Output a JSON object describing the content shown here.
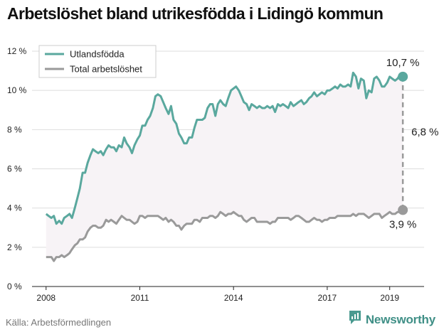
{
  "title": "Arbetslöshet bland utrikesfödda i Lidingö kommun",
  "source": "Källa: Arbetsförmedlingen",
  "brand": {
    "name": "Newsworthy",
    "icon": "newsworthy-logo-icon"
  },
  "colors": {
    "foreign": "#5aa89e",
    "total": "#9a9a9a",
    "gap_fill": "#f7f3f6",
    "grid": "#dddddd"
  },
  "chart_data": {
    "type": "line",
    "title": "Arbetslöshet bland utrikesfödda i Lidingö kommun",
    "xlabel": "",
    "ylabel": "",
    "xlim": [
      2007.55,
      2020.1
    ],
    "ylim": [
      0,
      12
    ],
    "yticks": [
      0,
      2,
      4,
      6,
      8,
      10,
      12
    ],
    "ytick_labels": [
      "0 %",
      "2 %",
      "4 %",
      "6 %",
      "8 %",
      "10 %",
      "12 %"
    ],
    "xticks": [
      2008,
      2011,
      2014,
      2017,
      2019
    ],
    "xtick_labels": [
      "2008",
      "2011",
      "2014",
      "2017",
      "2019"
    ],
    "grid": true,
    "legend": "top-left",
    "series": [
      {
        "name": "Utlandsfödda",
        "points": [
          [
            2008.0,
            3.7
          ],
          [
            2008.08,
            3.6
          ],
          [
            2008.17,
            3.5
          ],
          [
            2008.25,
            3.6
          ],
          [
            2008.33,
            3.2
          ],
          [
            2008.42,
            3.35
          ],
          [
            2008.5,
            3.2
          ],
          [
            2008.58,
            3.5
          ],
          [
            2008.67,
            3.6
          ],
          [
            2008.75,
            3.7
          ],
          [
            2008.83,
            3.5
          ],
          [
            2008.92,
            4.0
          ],
          [
            2009.0,
            4.5
          ],
          [
            2009.08,
            5.0
          ],
          [
            2009.17,
            5.8
          ],
          [
            2009.25,
            5.8
          ],
          [
            2009.33,
            6.3
          ],
          [
            2009.42,
            6.7
          ],
          [
            2009.5,
            7.0
          ],
          [
            2009.58,
            6.9
          ],
          [
            2009.67,
            6.8
          ],
          [
            2009.75,
            6.9
          ],
          [
            2009.83,
            6.7
          ],
          [
            2009.92,
            7.0
          ],
          [
            2010.0,
            7.2
          ],
          [
            2010.08,
            7.1
          ],
          [
            2010.17,
            7.1
          ],
          [
            2010.25,
            6.9
          ],
          [
            2010.33,
            7.2
          ],
          [
            2010.42,
            7.1
          ],
          [
            2010.5,
            7.6
          ],
          [
            2010.58,
            7.3
          ],
          [
            2010.67,
            7.1
          ],
          [
            2010.75,
            6.8
          ],
          [
            2010.83,
            7.2
          ],
          [
            2010.92,
            7.5
          ],
          [
            2011.0,
            7.7
          ],
          [
            2011.08,
            8.2
          ],
          [
            2011.17,
            8.2
          ],
          [
            2011.25,
            8.5
          ],
          [
            2011.33,
            8.7
          ],
          [
            2011.42,
            9.1
          ],
          [
            2011.5,
            9.7
          ],
          [
            2011.58,
            9.8
          ],
          [
            2011.67,
            9.7
          ],
          [
            2011.75,
            9.4
          ],
          [
            2011.83,
            9.1
          ],
          [
            2011.92,
            8.8
          ],
          [
            2012.0,
            9.2
          ],
          [
            2012.08,
            8.5
          ],
          [
            2012.17,
            8.3
          ],
          [
            2012.25,
            7.8
          ],
          [
            2012.33,
            7.6
          ],
          [
            2012.42,
            7.3
          ],
          [
            2012.5,
            7.3
          ],
          [
            2012.58,
            7.6
          ],
          [
            2012.67,
            7.6
          ],
          [
            2012.75,
            8.1
          ],
          [
            2012.83,
            8.5
          ],
          [
            2012.92,
            8.5
          ],
          [
            2013.0,
            8.5
          ],
          [
            2013.08,
            8.6
          ],
          [
            2013.17,
            9.1
          ],
          [
            2013.25,
            9.3
          ],
          [
            2013.33,
            9.3
          ],
          [
            2013.42,
            8.7
          ],
          [
            2013.5,
            9.3
          ],
          [
            2013.58,
            9.5
          ],
          [
            2013.67,
            9.3
          ],
          [
            2013.75,
            9.2
          ],
          [
            2013.83,
            9.6
          ],
          [
            2013.92,
            10.0
          ],
          [
            2014.0,
            10.1
          ],
          [
            2014.08,
            10.2
          ],
          [
            2014.17,
            10.0
          ],
          [
            2014.25,
            9.7
          ],
          [
            2014.33,
            9.4
          ],
          [
            2014.42,
            9.3
          ],
          [
            2014.5,
            9.0
          ],
          [
            2014.58,
            9.3
          ],
          [
            2014.67,
            9.2
          ],
          [
            2014.75,
            9.1
          ],
          [
            2014.83,
            9.2
          ],
          [
            2014.92,
            9.1
          ],
          [
            2015.0,
            9.1
          ],
          [
            2015.08,
            9.2
          ],
          [
            2015.17,
            9.1
          ],
          [
            2015.25,
            9.2
          ],
          [
            2015.33,
            8.9
          ],
          [
            2015.42,
            9.3
          ],
          [
            2015.5,
            9.2
          ],
          [
            2015.58,
            9.3
          ],
          [
            2015.67,
            9.2
          ],
          [
            2015.75,
            9.1
          ],
          [
            2015.83,
            9.4
          ],
          [
            2015.92,
            9.2
          ],
          [
            2016.0,
            9.3
          ],
          [
            2016.08,
            9.4
          ],
          [
            2016.17,
            9.5
          ],
          [
            2016.25,
            9.3
          ],
          [
            2016.33,
            9.4
          ],
          [
            2016.42,
            9.6
          ],
          [
            2016.5,
            9.7
          ],
          [
            2016.58,
            9.9
          ],
          [
            2016.67,
            9.7
          ],
          [
            2016.75,
            9.8
          ],
          [
            2016.83,
            9.9
          ],
          [
            2016.92,
            9.8
          ],
          [
            2017.0,
            10.0
          ],
          [
            2017.08,
            10.0
          ],
          [
            2017.17,
            10.1
          ],
          [
            2017.25,
            10.2
          ],
          [
            2017.33,
            10.1
          ],
          [
            2017.42,
            10.3
          ],
          [
            2017.5,
            10.2
          ],
          [
            2017.58,
            10.2
          ],
          [
            2017.67,
            10.3
          ],
          [
            2017.75,
            10.2
          ],
          [
            2017.83,
            10.9
          ],
          [
            2017.92,
            10.7
          ],
          [
            2018.0,
            10.1
          ],
          [
            2018.08,
            10.6
          ],
          [
            2018.17,
            10.5
          ],
          [
            2018.25,
            9.6
          ],
          [
            2018.33,
            10.0
          ],
          [
            2018.42,
            9.9
          ],
          [
            2018.5,
            10.6
          ],
          [
            2018.58,
            10.7
          ],
          [
            2018.67,
            10.5
          ],
          [
            2018.75,
            10.2
          ],
          [
            2018.83,
            10.2
          ],
          [
            2018.92,
            10.4
          ],
          [
            2019.0,
            10.7
          ],
          [
            2019.08,
            10.6
          ],
          [
            2019.17,
            10.5
          ],
          [
            2019.25,
            10.6
          ],
          [
            2019.33,
            10.8
          ],
          [
            2019.42,
            10.7
          ]
        ]
      },
      {
        "name": "Total arbetslöshet",
        "points": [
          [
            2008.0,
            1.5
          ],
          [
            2008.08,
            1.5
          ],
          [
            2008.17,
            1.5
          ],
          [
            2008.25,
            1.3
          ],
          [
            2008.33,
            1.5
          ],
          [
            2008.42,
            1.5
          ],
          [
            2008.5,
            1.6
          ],
          [
            2008.58,
            1.5
          ],
          [
            2008.67,
            1.6
          ],
          [
            2008.75,
            1.7
          ],
          [
            2008.83,
            1.9
          ],
          [
            2008.92,
            2.1
          ],
          [
            2009.0,
            2.2
          ],
          [
            2009.08,
            2.4
          ],
          [
            2009.17,
            2.4
          ],
          [
            2009.25,
            2.5
          ],
          [
            2009.33,
            2.8
          ],
          [
            2009.42,
            3.0
          ],
          [
            2009.5,
            3.1
          ],
          [
            2009.58,
            3.1
          ],
          [
            2009.67,
            3.0
          ],
          [
            2009.75,
            3.0
          ],
          [
            2009.83,
            3.1
          ],
          [
            2009.92,
            3.4
          ],
          [
            2010.0,
            3.3
          ],
          [
            2010.08,
            3.4
          ],
          [
            2010.17,
            3.3
          ],
          [
            2010.25,
            3.2
          ],
          [
            2010.33,
            3.4
          ],
          [
            2010.42,
            3.6
          ],
          [
            2010.5,
            3.5
          ],
          [
            2010.58,
            3.4
          ],
          [
            2010.67,
            3.4
          ],
          [
            2010.75,
            3.3
          ],
          [
            2010.83,
            3.2
          ],
          [
            2010.92,
            3.3
          ],
          [
            2011.0,
            3.6
          ],
          [
            2011.08,
            3.6
          ],
          [
            2011.17,
            3.5
          ],
          [
            2011.25,
            3.6
          ],
          [
            2011.33,
            3.6
          ],
          [
            2011.42,
            3.6
          ],
          [
            2011.5,
            3.6
          ],
          [
            2011.58,
            3.6
          ],
          [
            2011.67,
            3.5
          ],
          [
            2011.75,
            3.4
          ],
          [
            2011.83,
            3.5
          ],
          [
            2011.92,
            3.3
          ],
          [
            2012.0,
            3.4
          ],
          [
            2012.08,
            3.3
          ],
          [
            2012.17,
            3.1
          ],
          [
            2012.25,
            3.1
          ],
          [
            2012.33,
            2.9
          ],
          [
            2012.42,
            3.1
          ],
          [
            2012.5,
            3.2
          ],
          [
            2012.58,
            3.2
          ],
          [
            2012.67,
            3.2
          ],
          [
            2012.75,
            3.4
          ],
          [
            2012.83,
            3.4
          ],
          [
            2012.92,
            3.3
          ],
          [
            2013.0,
            3.5
          ],
          [
            2013.08,
            3.5
          ],
          [
            2013.17,
            3.5
          ],
          [
            2013.25,
            3.6
          ],
          [
            2013.33,
            3.6
          ],
          [
            2013.42,
            3.5
          ],
          [
            2013.5,
            3.6
          ],
          [
            2013.58,
            3.8
          ],
          [
            2013.67,
            3.7
          ],
          [
            2013.75,
            3.6
          ],
          [
            2013.83,
            3.7
          ],
          [
            2013.92,
            3.7
          ],
          [
            2014.0,
            3.8
          ],
          [
            2014.08,
            3.7
          ],
          [
            2014.17,
            3.6
          ],
          [
            2014.25,
            3.6
          ],
          [
            2014.33,
            3.4
          ],
          [
            2014.42,
            3.3
          ],
          [
            2014.5,
            3.4
          ],
          [
            2014.58,
            3.5
          ],
          [
            2014.67,
            3.5
          ],
          [
            2014.75,
            3.3
          ],
          [
            2014.83,
            3.3
          ],
          [
            2014.92,
            3.3
          ],
          [
            2015.0,
            3.3
          ],
          [
            2015.08,
            3.3
          ],
          [
            2015.17,
            3.2
          ],
          [
            2015.25,
            3.3
          ],
          [
            2015.33,
            3.3
          ],
          [
            2015.42,
            3.5
          ],
          [
            2015.5,
            3.5
          ],
          [
            2015.58,
            3.5
          ],
          [
            2015.67,
            3.5
          ],
          [
            2015.75,
            3.5
          ],
          [
            2015.83,
            3.4
          ],
          [
            2015.92,
            3.5
          ],
          [
            2016.0,
            3.6
          ],
          [
            2016.08,
            3.6
          ],
          [
            2016.17,
            3.5
          ],
          [
            2016.25,
            3.4
          ],
          [
            2016.33,
            3.3
          ],
          [
            2016.42,
            3.3
          ],
          [
            2016.5,
            3.4
          ],
          [
            2016.58,
            3.5
          ],
          [
            2016.67,
            3.4
          ],
          [
            2016.75,
            3.4
          ],
          [
            2016.83,
            3.3
          ],
          [
            2016.92,
            3.4
          ],
          [
            2017.0,
            3.4
          ],
          [
            2017.08,
            3.5
          ],
          [
            2017.17,
            3.5
          ],
          [
            2017.25,
            3.5
          ],
          [
            2017.33,
            3.6
          ],
          [
            2017.42,
            3.6
          ],
          [
            2017.5,
            3.6
          ],
          [
            2017.58,
            3.6
          ],
          [
            2017.67,
            3.6
          ],
          [
            2017.75,
            3.6
          ],
          [
            2017.83,
            3.7
          ],
          [
            2017.92,
            3.6
          ],
          [
            2018.0,
            3.7
          ],
          [
            2018.08,
            3.7
          ],
          [
            2018.17,
            3.7
          ],
          [
            2018.25,
            3.6
          ],
          [
            2018.33,
            3.5
          ],
          [
            2018.42,
            3.6
          ],
          [
            2018.5,
            3.7
          ],
          [
            2018.58,
            3.7
          ],
          [
            2018.67,
            3.7
          ],
          [
            2018.75,
            3.5
          ],
          [
            2018.83,
            3.6
          ],
          [
            2018.92,
            3.7
          ],
          [
            2019.0,
            3.8
          ],
          [
            2019.08,
            3.7
          ],
          [
            2019.17,
            3.7
          ],
          [
            2019.25,
            3.8
          ],
          [
            2019.33,
            3.8
          ],
          [
            2019.42,
            3.9
          ]
        ]
      }
    ],
    "annotations": [
      {
        "label": "10,7 %",
        "value": 10.7,
        "series": "Utlandsfödda"
      },
      {
        "label": "3,9 %",
        "value": 3.9,
        "series": "Total arbetslöshet"
      },
      {
        "label": "6,8 %",
        "value": 6.8,
        "kind": "gap"
      }
    ]
  }
}
